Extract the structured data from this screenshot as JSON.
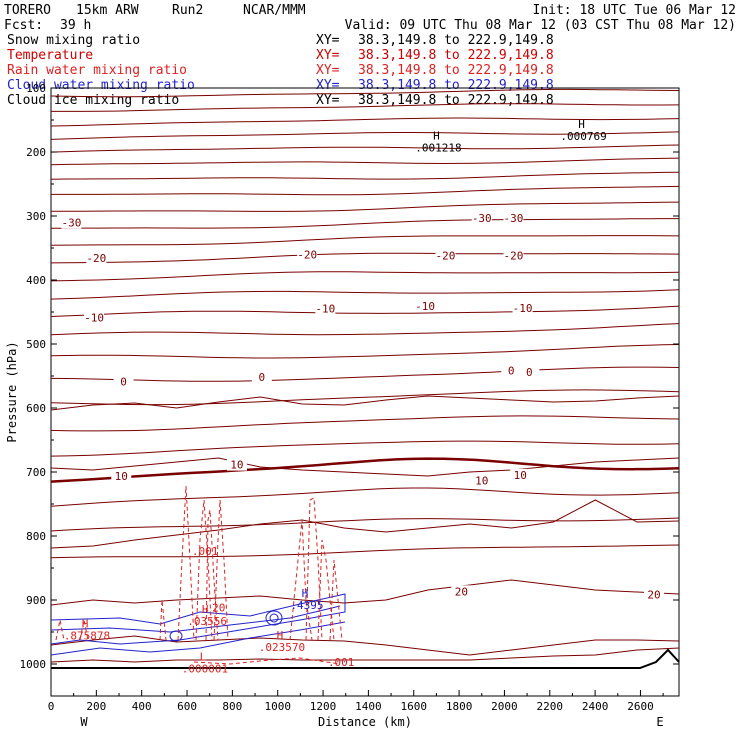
{
  "header": {
    "model": "TORERO",
    "config": "15km ARW",
    "run": "Run2",
    "center": "NCAR/MMM",
    "init": "Init: 18 UTC Tue 06 Mar 12",
    "fcst_label": "Fcst:",
    "fcst_value": "39 h",
    "valid": "Valid: 09 UTC Thu 08 Mar 12 (03 CST Thu 08 Mar 12)"
  },
  "fields": [
    {
      "name": "Snow mixing ratio",
      "color": "#000000",
      "xy_label": "XY=",
      "xy_range": "38.3,149.8 to 222.9,149.8"
    },
    {
      "name": "Temperature",
      "color": "#cc0000",
      "xy_label": "XY=",
      "xy_range": "38.3,149.8 to 222.9,149.8"
    },
    {
      "name": "Rain water mixing ratio",
      "color": "#dd2222",
      "xy_label": "XY=",
      "xy_range": "38.3,149.8 to 222.9,149.8"
    },
    {
      "name": "Cloud water mixing ratio",
      "color": "#2222cc",
      "xy_label": "XY=",
      "xy_range": "38.3,149.8 to 222.9,149.8"
    },
    {
      "name": "Cloud ice mixing ratio",
      "color": "#000000",
      "xy_label": "XY=",
      "xy_range": "38.3,149.8 to 222.9,149.8"
    }
  ],
  "chart_data": {
    "type": "cross-section contour",
    "xlabel": "Distance (km)",
    "ylabel": "Pressure (hPa)",
    "xlim": [
      0,
      2770
    ],
    "ylim": [
      1050,
      100
    ],
    "x_ticks": [
      0,
      200,
      400,
      600,
      800,
      1000,
      1200,
      1400,
      1600,
      1800,
      2000,
      2200,
      2400,
      2600
    ],
    "x_tick_labels": [
      "0",
      "200",
      "400",
      "600",
      "800",
      "1000",
      "1200",
      "1400",
      "1600",
      "1800",
      "2000",
      "2200",
      "2400",
      "2600"
    ],
    "y_ticks": [
      100,
      200,
      300,
      400,
      500,
      600,
      700,
      800,
      900,
      1000
    ],
    "y_tick_labels": [
      "100",
      "200",
      "300",
      "400",
      "500",
      "600",
      "700",
      "800",
      "900",
      "1000"
    ],
    "left_end_label": "W",
    "right_end_label": "E",
    "temperature_contour_labels": [
      {
        "text": "-30",
        "x": 90,
        "p": 312
      },
      {
        "text": "-30",
        "x": 1900,
        "p": 305
      },
      {
        "text": "-30",
        "x": 2040,
        "p": 305
      },
      {
        "text": "-20",
        "x": 200,
        "p": 367
      },
      {
        "text": "-20",
        "x": 1130,
        "p": 362
      },
      {
        "text": "-20",
        "x": 1740,
        "p": 363
      },
      {
        "text": "-20",
        "x": 2040,
        "p": 363
      },
      {
        "text": "-10",
        "x": 190,
        "p": 460
      },
      {
        "text": "-10",
        "x": 1210,
        "p": 446
      },
      {
        "text": "-10",
        "x": 1650,
        "p": 442
      },
      {
        "text": "-10",
        "x": 2080,
        "p": 445
      },
      {
        "text": "0",
        "x": 320,
        "p": 560
      },
      {
        "text": "0",
        "x": 930,
        "p": 553
      },
      {
        "text": "0",
        "x": 2030,
        "p": 543
      },
      {
        "text": "0",
        "x": 2110,
        "p": 545
      },
      {
        "text": "10",
        "x": 310,
        "p": 708
      },
      {
        "text": "10",
        "x": 820,
        "p": 690
      },
      {
        "text": "10",
        "x": 1900,
        "p": 715
      },
      {
        "text": "10",
        "x": 2070,
        "p": 706
      },
      {
        "text": "20",
        "x": 1810,
        "p": 888
      },
      {
        "text": "20",
        "x": 2660,
        "p": 893
      }
    ],
    "extrema_labels": [
      {
        "symbol": "H",
        "value": ".001218",
        "x": 1700,
        "p": 190
      },
      {
        "symbol": "H",
        "value": ".000769",
        "x": 2340,
        "p": 172
      },
      {
        "symbol": "H",
        "value": ".4395",
        "x": 1120,
        "p": 905
      },
      {
        "symbol": "H",
        "value": ".875878",
        "x": 150,
        "p": 952
      },
      {
        "symbol": "H",
        "value": ".03556",
        "x": 680,
        "p": 930
      },
      {
        "symbol": "H",
        "value": ".023570",
        "x": 1010,
        "p": 970
      },
      {
        "symbol": "L",
        "value": ".000001",
        "x": 670,
        "p": 1004
      }
    ],
    "rain_contour_labels": [
      {
        "text": ".001",
        "x": 680,
        "p": 830
      },
      {
        "text": ".001",
        "x": 1280,
        "p": 1003
      },
      {
        "text": "20",
        "x": 740,
        "p": 918
      }
    ],
    "terrain_color": "#000000",
    "temperature_color": "#7a0000",
    "rain_color": "#dd2222",
    "cloud_water_color": "#2222cc"
  }
}
